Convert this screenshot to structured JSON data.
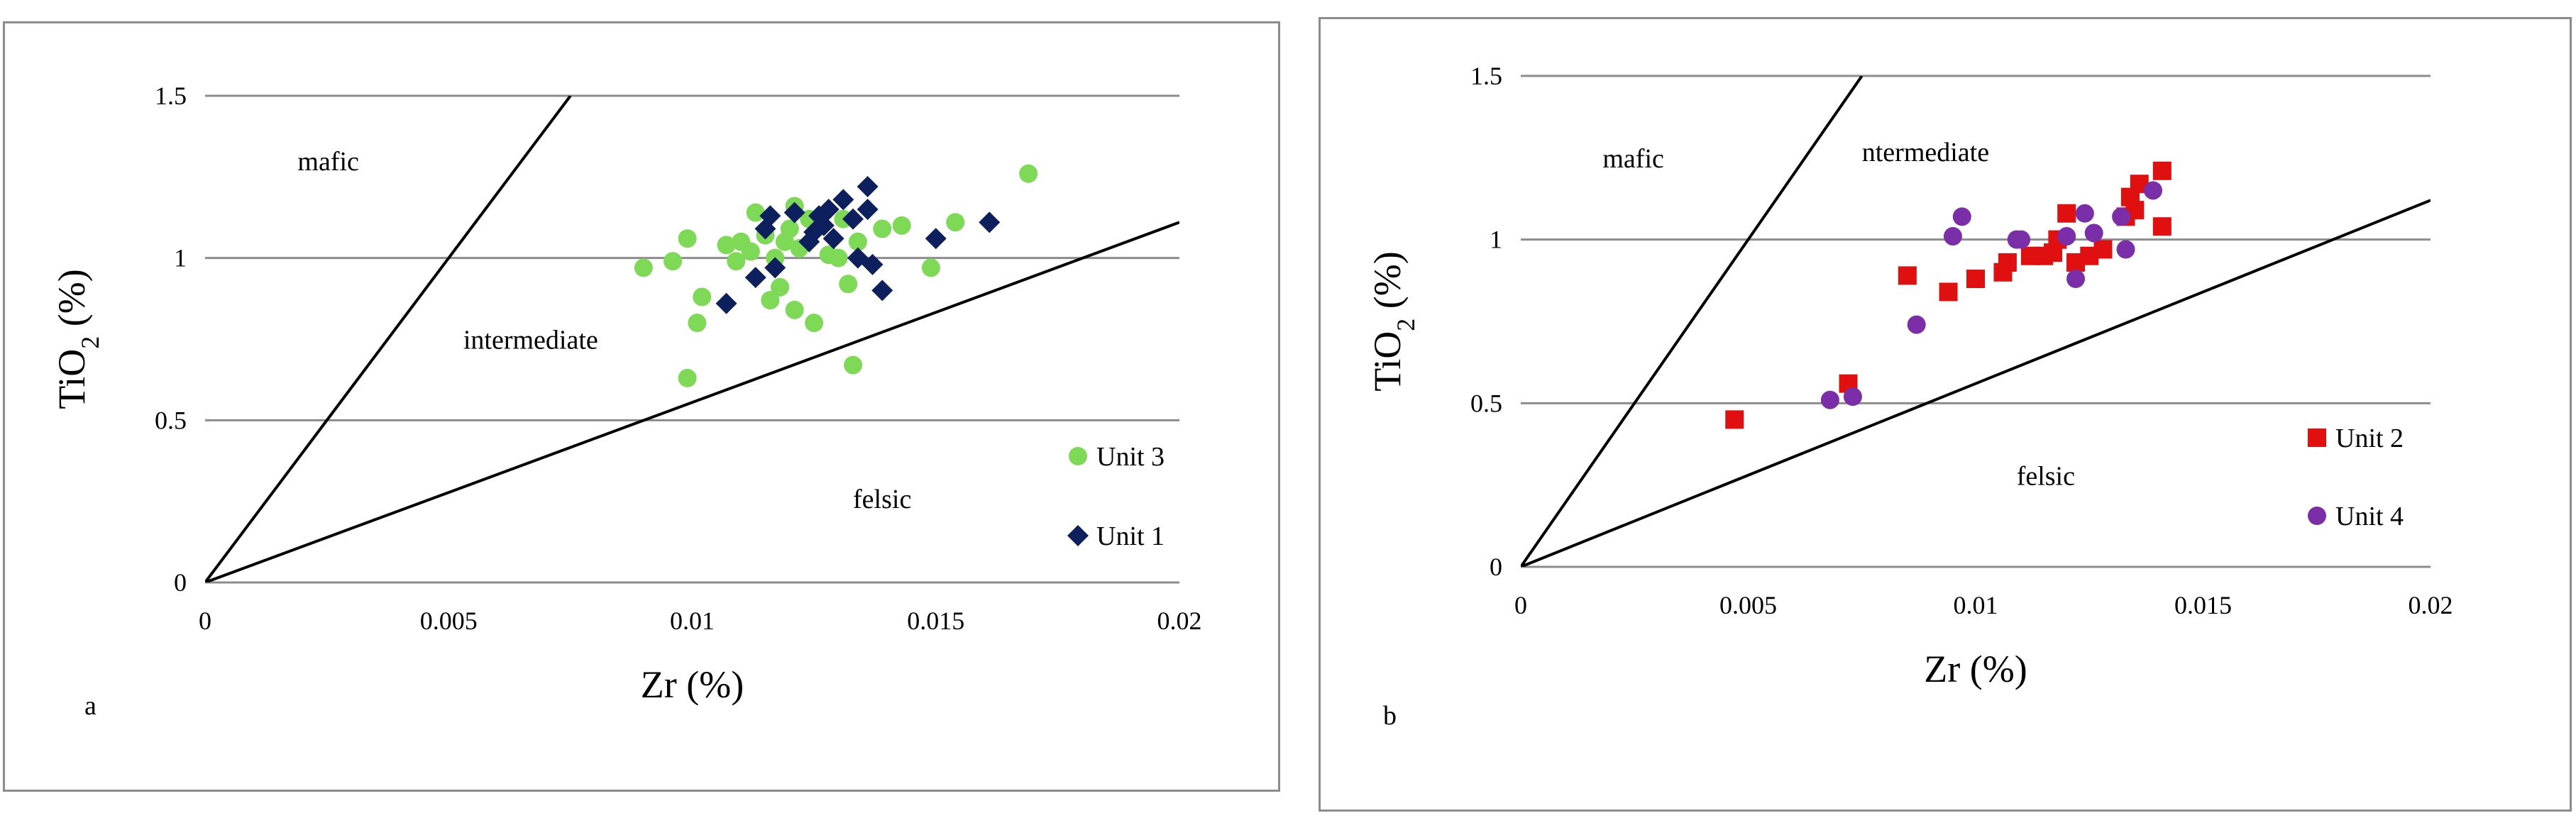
{
  "chart_data": [
    {
      "type": "scatter",
      "panel_label": "a",
      "xlabel": "Zr (%)",
      "ylabel": "TiO2 (%)",
      "ylabel_main": "TiO",
      "ylabel_sub": "2",
      "ylabel_tail": " (%)",
      "xlim": [
        0,
        0.02
      ],
      "ylim": [
        0,
        1.5
      ],
      "xticks": [
        0,
        0.005,
        0.01,
        0.015,
        0.02
      ],
      "xtick_labels": [
        "0",
        "0.005",
        "0.01",
        "0.015",
        "0.02"
      ],
      "yticks": [
        0,
        0.5,
        1,
        1.5
      ],
      "ytick_labels": [
        "0",
        "0.5",
        "1",
        "1.5"
      ],
      "grid": "horizontal",
      "legend_position": "bottom-right",
      "boundary_lines": [
        {
          "from": [
            0,
            0
          ],
          "to": [
            0.0075,
            1.5
          ]
        },
        {
          "from": [
            0,
            0
          ],
          "to": [
            0.02,
            1.11
          ]
        }
      ],
      "region_labels": [
        {
          "text": "mafic",
          "x": 0.0019,
          "y": 1.27
        },
        {
          "text": "intermediate",
          "x": 0.0053,
          "y": 0.72
        },
        {
          "text": "felsic",
          "x": 0.0133,
          "y": 0.23
        }
      ],
      "series": [
        {
          "name": "Unit 3",
          "marker": "circle",
          "color": "#7ed957",
          "points": [
            [
              0.009,
              0.97
            ],
            [
              0.0096,
              0.99
            ],
            [
              0.0099,
              1.06
            ],
            [
              0.0099,
              0.63
            ],
            [
              0.0101,
              0.8
            ],
            [
              0.0102,
              0.88
            ],
            [
              0.0107,
              1.04
            ],
            [
              0.0109,
              0.99
            ],
            [
              0.011,
              1.05
            ],
            [
              0.0112,
              1.02
            ],
            [
              0.0113,
              1.14
            ],
            [
              0.0115,
              1.07
            ],
            [
              0.0116,
              0.87
            ],
            [
              0.0117,
              1.0
            ],
            [
              0.0118,
              0.91
            ],
            [
              0.0119,
              1.05
            ],
            [
              0.012,
              1.09
            ],
            [
              0.0121,
              1.16
            ],
            [
              0.0121,
              0.84
            ],
            [
              0.0122,
              1.03
            ],
            [
              0.0124,
              1.12
            ],
            [
              0.0125,
              0.8
            ],
            [
              0.0128,
              1.01
            ],
            [
              0.013,
              1.0
            ],
            [
              0.0131,
              1.12
            ],
            [
              0.0132,
              0.92
            ],
            [
              0.0133,
              0.67
            ],
            [
              0.0134,
              1.05
            ],
            [
              0.0139,
              1.09
            ],
            [
              0.0143,
              1.1
            ],
            [
              0.0149,
              0.97
            ],
            [
              0.0154,
              1.11
            ],
            [
              0.0169,
              1.26
            ]
          ]
        },
        {
          "name": "Unit 1",
          "marker": "diamond",
          "color": "#0d1f5c",
          "points": [
            [
              0.0107,
              0.86
            ],
            [
              0.0113,
              0.94
            ],
            [
              0.0115,
              1.09
            ],
            [
              0.0116,
              1.13
            ],
            [
              0.0117,
              0.97
            ],
            [
              0.0121,
              1.14
            ],
            [
              0.0124,
              1.05
            ],
            [
              0.0125,
              1.08
            ],
            [
              0.0126,
              1.13
            ],
            [
              0.0127,
              1.1
            ],
            [
              0.0128,
              1.15
            ],
            [
              0.0129,
              1.06
            ],
            [
              0.0131,
              1.18
            ],
            [
              0.0133,
              1.12
            ],
            [
              0.0134,
              1.0
            ],
            [
              0.0136,
              1.22
            ],
            [
              0.0136,
              1.15
            ],
            [
              0.0137,
              0.98
            ],
            [
              0.0139,
              0.9
            ],
            [
              0.015,
              1.06
            ],
            [
              0.0161,
              1.11
            ]
          ]
        }
      ]
    },
    {
      "type": "scatter",
      "panel_label": "b",
      "xlabel": "Zr (%)",
      "ylabel": "TiO2 (%)",
      "ylabel_main": "TiO",
      "ylabel_sub": "2",
      "ylabel_tail": " (%)",
      "xlim": [
        0,
        0.02
      ],
      "ylim": [
        0,
        1.5
      ],
      "xticks": [
        0,
        0.005,
        0.01,
        0.015,
        0.02
      ],
      "xtick_labels": [
        "0",
        "0.005",
        "0.01",
        "0.015",
        "0.02"
      ],
      "yticks": [
        0,
        0.5,
        1,
        1.5
      ],
      "ytick_labels": [
        "0",
        "0.5",
        "1",
        "1.5"
      ],
      "grid": "horizontal",
      "legend_position": "bottom-right",
      "boundary_lines": [
        {
          "from": [
            0,
            0
          ],
          "to": [
            0.0075,
            1.5
          ]
        },
        {
          "from": [
            0,
            0
          ],
          "to": [
            0.02,
            1.12
          ]
        }
      ],
      "region_labels": [
        {
          "text": "mafic",
          "x": 0.0018,
          "y": 1.22
        },
        {
          "text": "ntermediate",
          "x": 0.0075,
          "y": 1.24
        },
        {
          "text": "felsic",
          "x": 0.0109,
          "y": 0.25
        }
      ],
      "series": [
        {
          "name": "Unit 2",
          "marker": "square",
          "color": "#e01010",
          "points": [
            [
              0.0047,
              0.45
            ],
            [
              0.0072,
              0.56
            ],
            [
              0.0085,
              0.89
            ],
            [
              0.0094,
              0.84
            ],
            [
              0.01,
              0.88
            ],
            [
              0.0106,
              0.9
            ],
            [
              0.0107,
              0.93
            ],
            [
              0.0112,
              0.95
            ],
            [
              0.0115,
              0.95
            ],
            [
              0.0117,
              0.96
            ],
            [
              0.0118,
              1.0
            ],
            [
              0.012,
              1.08
            ],
            [
              0.0122,
              0.93
            ],
            [
              0.0125,
              0.95
            ],
            [
              0.0128,
              0.97
            ],
            [
              0.0133,
              1.07
            ],
            [
              0.0134,
              1.13
            ],
            [
              0.0135,
              1.09
            ],
            [
              0.0136,
              1.17
            ],
            [
              0.0141,
              1.04
            ],
            [
              0.0141,
              1.21
            ]
          ]
        },
        {
          "name": "Unit 4",
          "marker": "circle",
          "color": "#7a2fa8",
          "points": [
            [
              0.0068,
              0.51
            ],
            [
              0.0073,
              0.52
            ],
            [
              0.0087,
              0.74
            ],
            [
              0.0095,
              1.01
            ],
            [
              0.0097,
              1.07
            ],
            [
              0.0109,
              1.0
            ],
            [
              0.011,
              1.0
            ],
            [
              0.012,
              1.01
            ],
            [
              0.0122,
              0.88
            ],
            [
              0.0124,
              1.08
            ],
            [
              0.0126,
              1.02
            ],
            [
              0.0132,
              1.07
            ],
            [
              0.0133,
              0.97
            ],
            [
              0.0139,
              1.15
            ]
          ]
        }
      ]
    }
  ]
}
